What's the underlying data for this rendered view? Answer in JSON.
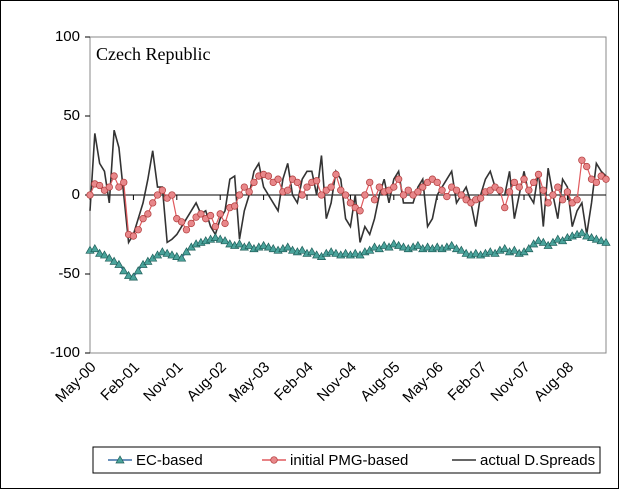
{
  "chart_data": {
    "type": "line",
    "annotation": "Czech Republic",
    "categories": [
      "May-00",
      null,
      null,
      null,
      null,
      null,
      null,
      null,
      null,
      "Feb-01",
      null,
      null,
      null,
      null,
      null,
      null,
      null,
      null,
      "Nov-01",
      null,
      null,
      null,
      null,
      null,
      null,
      null,
      null,
      "Aug-02",
      null,
      null,
      null,
      null,
      null,
      null,
      null,
      null,
      "May-03",
      null,
      null,
      null,
      null,
      null,
      null,
      null,
      null,
      "Feb-04",
      null,
      null,
      null,
      null,
      null,
      null,
      null,
      null,
      "Nov-04",
      null,
      null,
      null,
      null,
      null,
      null,
      null,
      null,
      "Aug-05",
      null,
      null,
      null,
      null,
      null,
      null,
      null,
      null,
      "May-06",
      null,
      null,
      null,
      null,
      null,
      null,
      null,
      null,
      "Feb-07",
      null,
      null,
      null,
      null,
      null,
      null,
      null,
      null,
      "Nov-07",
      null,
      null,
      null,
      null,
      null,
      null,
      null,
      null,
      "Aug-08",
      null,
      null,
      null,
      null,
      null,
      null,
      null,
      null
    ],
    "series": [
      {
        "name": "EC-based",
        "color": "#4aa39b",
        "marker": "triangle",
        "values": [
          -35,
          -34,
          -37,
          -38,
          -40,
          -42,
          -44,
          -48,
          -51,
          -52,
          -48,
          -44,
          -42,
          -40,
          -38,
          -36,
          -37,
          -38,
          -39,
          -40,
          -36,
          -33,
          -31,
          -30,
          -29,
          -28,
          -27,
          -28,
          -29,
          -31,
          -32,
          -31,
          -33,
          -32,
          -34,
          -33,
          -32,
          -33,
          -34,
          -35,
          -34,
          -33,
          -35,
          -36,
          -35,
          -37,
          -36,
          -38,
          -39,
          -37,
          -36,
          -37,
          -38,
          -37,
          -38,
          -37,
          -38,
          -36,
          -35,
          -33,
          -34,
          -32,
          -33,
          -31,
          -32,
          -33,
          -34,
          -33,
          -32,
          -34,
          -33,
          -34,
          -33,
          -34,
          -33,
          -32,
          -34,
          -35,
          -37,
          -38,
          -37,
          -38,
          -37,
          -36,
          -37,
          -35,
          -34,
          -36,
          -35,
          -37,
          -36,
          -34,
          -31,
          -29,
          -30,
          -32,
          -30,
          -28,
          -29,
          -27,
          -26,
          -25,
          -24,
          -26,
          -27,
          -28,
          -29,
          -30
        ]
      },
      {
        "name": "initial PMG-based",
        "color": "#e8878a",
        "marker": "circle",
        "values": [
          0,
          7,
          6,
          3,
          5,
          12,
          5,
          8,
          -25,
          -26,
          -22,
          -15,
          -12,
          -5,
          0,
          3,
          -2,
          0,
          -15,
          -17,
          -22,
          -18,
          -14,
          -12,
          -15,
          -13,
          -20,
          -12,
          -18,
          -8,
          -7,
          0,
          5,
          2,
          8,
          12,
          13,
          12,
          8,
          10,
          2,
          3,
          10,
          8,
          0,
          5,
          8,
          9,
          0,
          3,
          5,
          13,
          3,
          0,
          -5,
          -8,
          -10,
          0,
          8,
          -3,
          5,
          2,
          3,
          5,
          10,
          0,
          3,
          0,
          2,
          5,
          8,
          10,
          8,
          3,
          -1,
          5,
          3,
          0,
          -3,
          -5,
          -3,
          -2,
          2,
          3,
          5,
          3,
          -8,
          2,
          8,
          5,
          10,
          3,
          8,
          13,
          3,
          -5,
          0,
          5,
          -3,
          2,
          -5,
          -3,
          22,
          18,
          10,
          8,
          12,
          10
        ]
      },
      {
        "name": "actual D.Spreads",
        "color": "#333333",
        "marker": "none",
        "values": [
          -10,
          39,
          20,
          15,
          -5,
          41,
          30,
          0,
          -30,
          -25,
          -15,
          -5,
          10,
          28,
          5,
          5,
          -30,
          -28,
          -25,
          -20,
          -15,
          -10,
          -5,
          -12,
          -10,
          -20,
          -25,
          -15,
          -10,
          10,
          12,
          -28,
          -10,
          0,
          15,
          20,
          5,
          0,
          -5,
          -10,
          10,
          20,
          0,
          -5,
          10,
          15,
          15,
          0,
          25,
          -15,
          -5,
          15,
          10,
          -15,
          -20,
          0,
          -30,
          -20,
          -25,
          -15,
          0,
          10,
          -5,
          10,
          15,
          -5,
          -5,
          -5,
          5,
          10,
          -20,
          -15,
          0,
          5,
          10,
          15,
          -5,
          0,
          5,
          -5,
          -20,
          0,
          10,
          15,
          5,
          0,
          0,
          15,
          -15,
          0,
          15,
          0,
          -5,
          15,
          -20,
          17,
          0,
          -15,
          10,
          5,
          -20,
          -10,
          -5,
          -25,
          -5,
          20,
          15,
          12
        ]
      }
    ],
    "ylim": [
      -100,
      100
    ],
    "yticks": [
      -100,
      -50,
      0,
      50,
      100
    ],
    "legend": "bottom"
  }
}
